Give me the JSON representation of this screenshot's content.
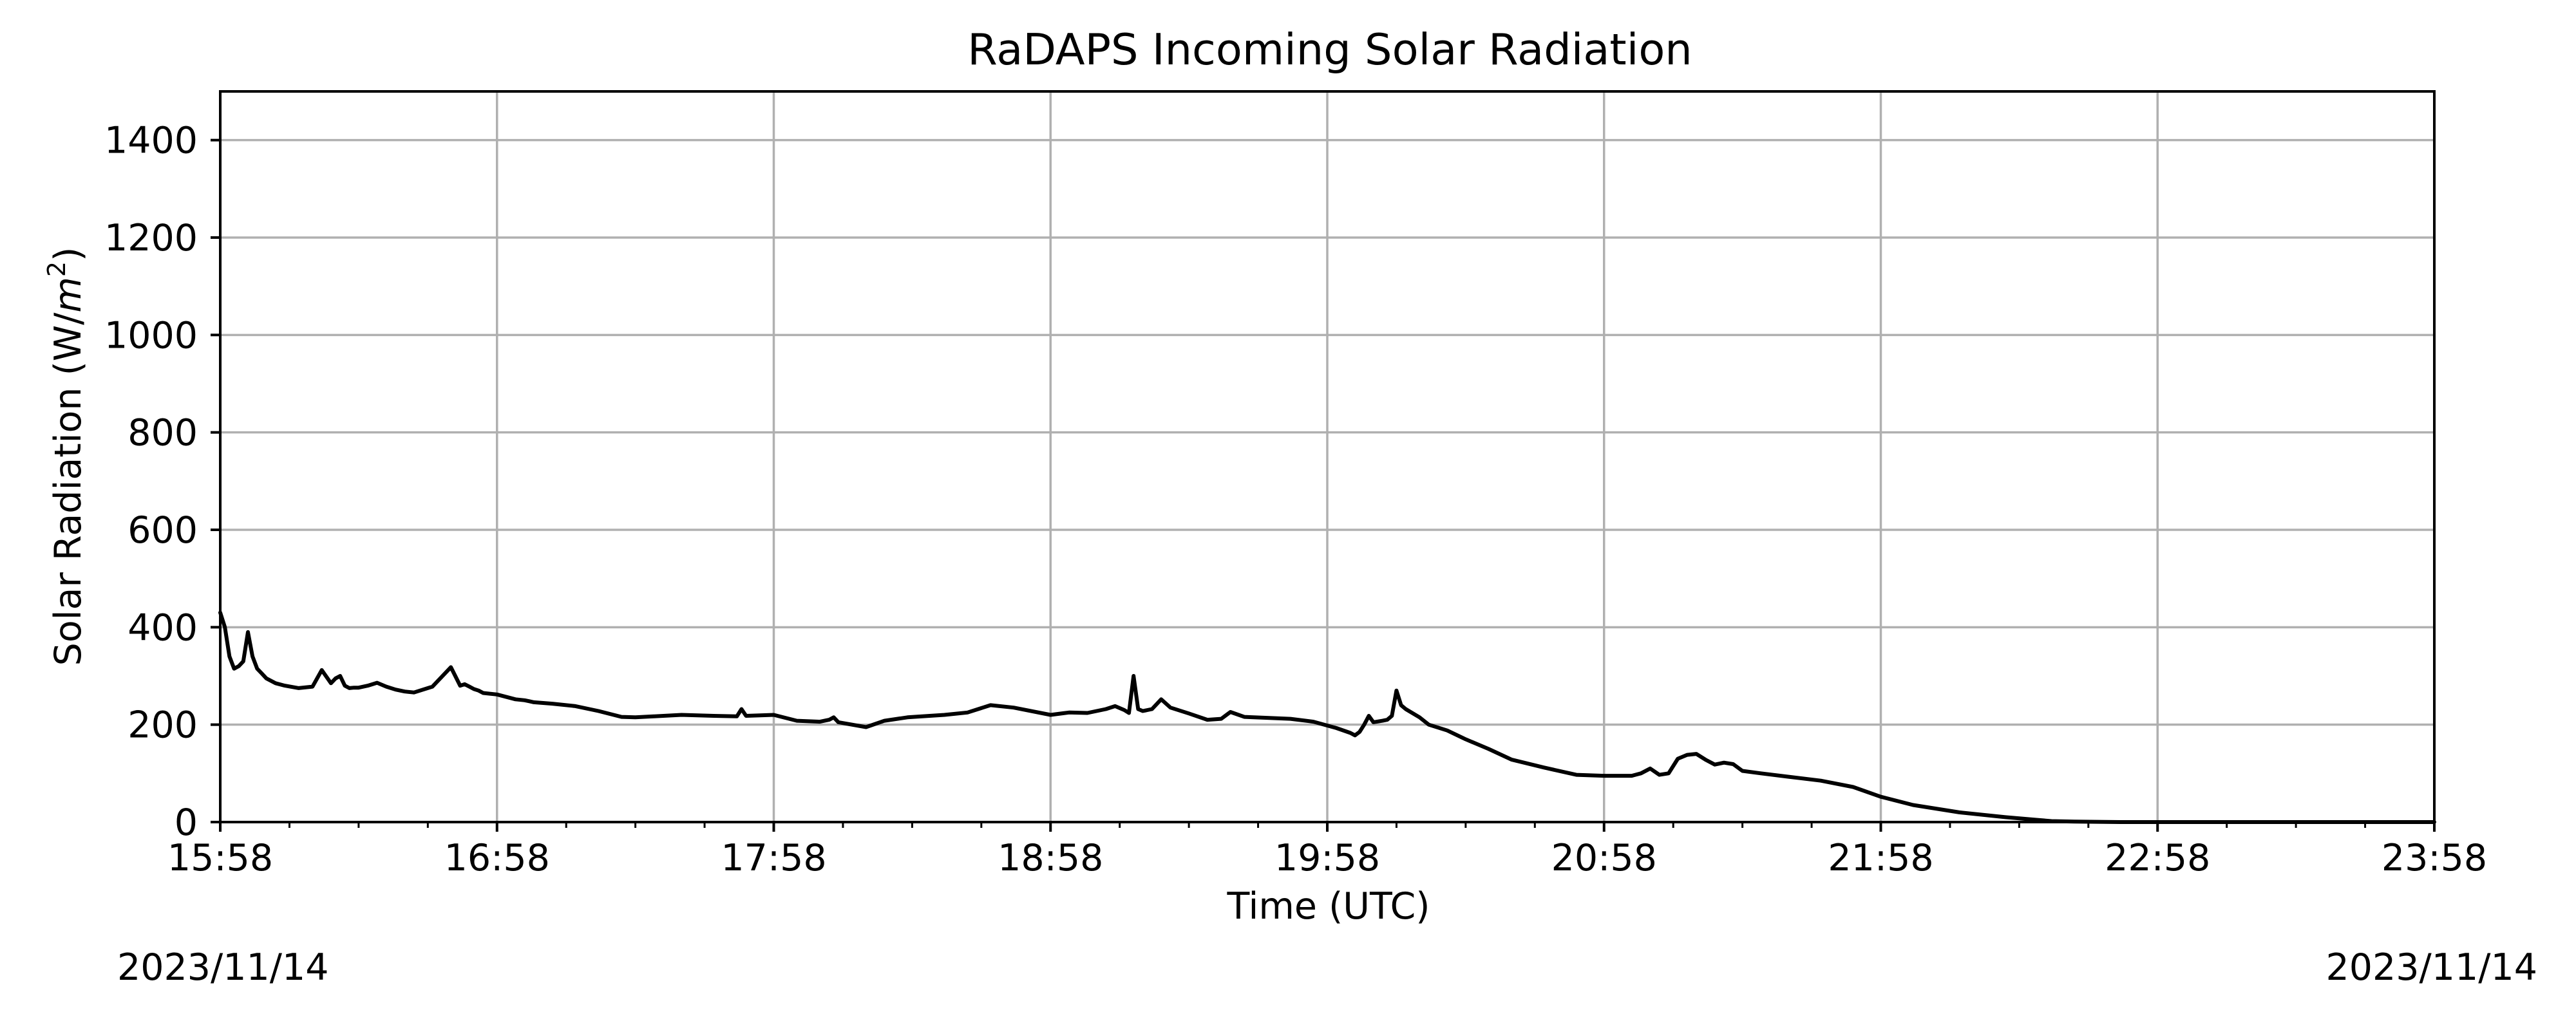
{
  "chart_data": {
    "type": "line",
    "title": "RaDAPS Incoming Solar Radiation",
    "xlabel": "Time (UTC)",
    "ylabel": "Solar Radiation (W/m²)",
    "ylabel_main": "Solar Radiation (W/",
    "ylabel_unit_base": "m",
    "ylabel_unit_exp": "2",
    "ylabel_close": ")",
    "date_left": "2023/11/14",
    "date_right": "2023/11/14",
    "xlim": [
      "15:58",
      "23:58"
    ],
    "ylim": [
      0,
      1500
    ],
    "x_ticks": [
      "15:58",
      "16:58",
      "17:58",
      "18:58",
      "19:58",
      "20:58",
      "21:58",
      "22:58",
      "23:58"
    ],
    "y_ticks": [
      0,
      200,
      400,
      600,
      800,
      1000,
      1200,
      1400
    ],
    "grid": true,
    "line_color": "#000000",
    "grid_color": "#b0b0b0",
    "series": [
      {
        "x": [
          "15:58",
          "15:59",
          "16:00",
          "16:01",
          "16:02",
          "16:03",
          "16:04",
          "16:05",
          "16:06",
          "16:07",
          "16:08",
          "16:10",
          "16:12",
          "16:15",
          "16:18",
          "16:20",
          "16:22",
          "16:23",
          "16:24",
          "16:25",
          "16:26",
          "16:27",
          "16:28",
          "16:30",
          "16:32",
          "16:34",
          "16:36",
          "16:38",
          "16:40",
          "16:44",
          "16:48",
          "16:50",
          "16:51",
          "16:52",
          "16:53",
          "16:54",
          "16:55",
          "16:58",
          "17:02",
          "17:04",
          "17:05",
          "17:06",
          "17:10",
          "17:15",
          "17:20",
          "17:25",
          "17:28",
          "17:32",
          "17:38",
          "17:45",
          "17:50",
          "17:51",
          "17:52",
          "17:58",
          "18:03",
          "18:08",
          "18:10",
          "18:11",
          "18:12",
          "18:18",
          "18:22",
          "18:27",
          "18:35",
          "18:40",
          "18:45",
          "18:50",
          "18:58",
          "19:02",
          "19:06",
          "19:10",
          "19:12",
          "19:14",
          "19:15",
          "19:16",
          "19:17",
          "19:18",
          "19:19",
          "19:20",
          "19:22",
          "19:24",
          "19:28",
          "19:32",
          "19:35",
          "19:37",
          "19:40",
          "19:45",
          "19:50",
          "19:55",
          "20:00",
          "20:03",
          "20:04",
          "20:05",
          "20:06",
          "20:07",
          "20:08",
          "20:10",
          "20:11",
          "20:12",
          "20:13",
          "20:14",
          "20:15",
          "20:18",
          "20:20",
          "20:24",
          "20:28",
          "20:33",
          "20:38",
          "20:45",
          "20:52",
          "20:58",
          "21:04",
          "21:06",
          "21:08",
          "21:10",
          "21:12",
          "21:14",
          "21:16",
          "21:18",
          "21:20",
          "21:22",
          "21:24",
          "21:26",
          "21:28",
          "21:32",
          "21:38",
          "21:45",
          "21:52",
          "21:58",
          "22:05",
          "22:15",
          "22:25",
          "22:35",
          "22:40",
          "22:50",
          "23:20",
          "23:58"
        ],
        "y": [
          430,
          400,
          340,
          315,
          320,
          330,
          390,
          340,
          315,
          305,
          295,
          285,
          280,
          275,
          278,
          312,
          285,
          295,
          300,
          280,
          275,
          276,
          276,
          280,
          286,
          278,
          272,
          268,
          266,
          278,
          318,
          280,
          283,
          278,
          273,
          270,
          265,
          262,
          252,
          250,
          248,
          246,
          243,
          238,
          228,
          216,
          215,
          217,
          220,
          218,
          217,
          232,
          218,
          220,
          208,
          206,
          210,
          215,
          205,
          195,
          208,
          215,
          220,
          225,
          240,
          235,
          220,
          225,
          224,
          232,
          238,
          230,
          224,
          300,
          232,
          228,
          230,
          232,
          252,
          235,
          223,
          210,
          212,
          226,
          216,
          214,
          212,
          206,
          193,
          183,
          178,
          185,
          200,
          218,
          205,
          208,
          210,
          218,
          270,
          240,
          232,
          215,
          200,
          188,
          170,
          150,
          128,
          112,
          97,
          95,
          95,
          100,
          110,
          97,
          100,
          130,
          138,
          140,
          128,
          118,
          122,
          119,
          105,
          100,
          93,
          85,
          72,
          52,
          35,
          20,
          10,
          2,
          1,
          0,
          0,
          0
        ]
      }
    ]
  }
}
